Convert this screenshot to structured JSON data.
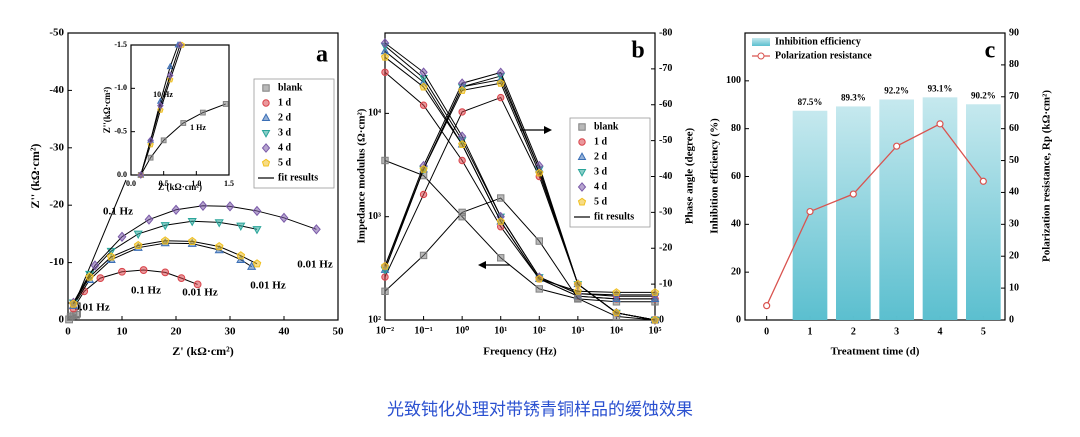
{
  "caption": "光致钝化处理对带锈青铜样品的缓蚀效果",
  "chart_data": [
    {
      "type": "scatter",
      "label": "a",
      "xlabel": "Z' (kΩ·cm²)",
      "ylabel": "Z'' (kΩ·cm²)",
      "xlim": [
        0,
        50
      ],
      "ylim": [
        0,
        -50
      ],
      "xticks": [
        0,
        10,
        20,
        30,
        40,
        50
      ],
      "yticks": [
        0,
        -10,
        -20,
        -30,
        -40,
        -50
      ],
      "fit_label": "fit results",
      "fit_color": "#000000",
      "annotations": [
        "0.1 Hz",
        "0.1 Hz",
        "0.01 Hz",
        "0.01 Hz",
        "0.01 Hz",
        "0.01 Hz"
      ],
      "series": [
        {
          "name": "blank",
          "color": "#808080",
          "marker": "square",
          "x": [
            0.2,
            0.5,
            1,
            1.5
          ],
          "values": [
            -0.1,
            -0.5,
            -0.8,
            -0.9
          ]
        },
        {
          "name": "1 d",
          "color": "#d9434a",
          "marker": "circle",
          "x": [
            1,
            3,
            6,
            10,
            14,
            18,
            21,
            24
          ],
          "values": [
            -2,
            -5,
            -7.3,
            -8.4,
            -8.7,
            -8.3,
            -7.3,
            -6.2
          ]
        },
        {
          "name": "2 d",
          "color": "#3b6fb6",
          "marker": "triangle-up",
          "x": [
            1,
            4,
            8,
            13,
            18,
            23,
            28,
            32,
            34
          ],
          "values": [
            -2.5,
            -7,
            -10.5,
            -12.6,
            -13.4,
            -13.3,
            -12.2,
            -10.5,
            -9.3
          ]
        },
        {
          "name": "3 d",
          "color": "#2aa59a",
          "marker": "triangle-down",
          "x": [
            1,
            4,
            8,
            13,
            18,
            23,
            28,
            32,
            35
          ],
          "values": [
            -3,
            -8,
            -12,
            -15,
            -16.5,
            -17.2,
            -17,
            -16.4,
            -15.8
          ]
        },
        {
          "name": "4 d",
          "color": "#7a5aa8",
          "marker": "diamond",
          "x": [
            1,
            5,
            10,
            15,
            20,
            25,
            30,
            35,
            40,
            46
          ],
          "values": [
            -3,
            -9.5,
            -14.5,
            -17.5,
            -19.2,
            -19.9,
            -19.8,
            -19,
            -17.8,
            -15.8
          ]
        },
        {
          "name": "5 d",
          "color": "#f0c020",
          "marker": "pentagon",
          "x": [
            1,
            4,
            8,
            13,
            18,
            23,
            28,
            32,
            35
          ],
          "values": [
            -2.8,
            -7.5,
            -11,
            -13,
            -13.8,
            -13.7,
            -12.8,
            -11.2,
            -9.8
          ]
        }
      ]
    },
    {
      "type": "scatter",
      "xlabel": "Z'(kΩ·cm²)",
      "ylabel": "Z''(kΩ·cm²)",
      "xlim": [
        0,
        1.5
      ],
      "ylim": [
        0,
        -1.5
      ],
      "xticks": [
        {
          "value": 0,
          "label": "0.0"
        },
        {
          "value": 0.5,
          "label": "0.5"
        },
        {
          "value": 1,
          "label": "1.0"
        },
        {
          "value": 1.5,
          "label": "1.5"
        }
      ],
      "yticks": [
        {
          "value": 0,
          "label": "0.0"
        },
        {
          "value": -0.5,
          "label": "-0.5"
        },
        {
          "value": -1,
          "label": "-1.0"
        },
        {
          "value": -1.5,
          "label": "-1.5"
        }
      ],
      "fit_color": "#000000",
      "annotations": [
        "10 Hz",
        "1 Hz"
      ],
      "series": [
        {
          "color": "#808080",
          "marker": "square",
          "x": [
            0.15,
            0.3,
            0.5,
            0.8,
            1.1,
            1.45
          ],
          "values": [
            0,
            -0.2,
            -0.4,
            -0.6,
            -0.72,
            -0.82
          ]
        },
        {
          "color": "#3b6fb6",
          "marker": "triangle-up",
          "x": [
            0.15,
            0.3,
            0.45,
            0.6,
            0.72
          ],
          "values": [
            0,
            -0.4,
            -0.85,
            -1.25,
            -1.5
          ]
        },
        {
          "color": "#f0c020",
          "marker": "pentagon",
          "x": [
            0.15,
            0.3,
            0.45,
            0.6,
            0.78
          ],
          "values": [
            0,
            -0.35,
            -0.75,
            -1.1,
            -1.5
          ]
        },
        {
          "color": "#7a5aa8",
          "marker": "diamond",
          "x": [
            0.15,
            0.3,
            0.45,
            0.6,
            0.75
          ],
          "values": [
            0,
            -0.4,
            -0.8,
            -1.15,
            -1.5
          ]
        }
      ]
    },
    {
      "type": "line",
      "label": "b",
      "xlabel": "Frequency (Hz)",
      "ylabel": "Impedance modulus (Ω·cm²)",
      "y2label": "Phase angle (degree)",
      "log_x": true,
      "log_y": true,
      "xlim": [
        0.01,
        100000
      ],
      "ylim": [
        100,
        60000
      ],
      "y2lim": [
        0,
        -80
      ],
      "xticks": [
        {
          "value": 0.01,
          "label": "10⁻²"
        },
        {
          "value": 0.1,
          "label": "10⁻¹"
        },
        {
          "value": 1,
          "label": "10⁰"
        },
        {
          "value": 10,
          "label": "10¹"
        },
        {
          "value": 100,
          "label": "10²"
        },
        {
          "value": 1000,
          "label": "10³"
        },
        {
          "value": 10000,
          "label": "10⁴"
        },
        {
          "value": 100000,
          "label": "10⁵"
        }
      ],
      "yticks": [
        {
          "value": 100,
          "label": "10²"
        },
        {
          "value": 1000,
          "label": "10³"
        },
        {
          "value": 10000,
          "label": "10⁴"
        }
      ],
      "y2ticks": [
        0,
        -10,
        -20,
        -30,
        -40,
        -50,
        -60,
        -70,
        -80
      ],
      "fit_label": "fit results",
      "fit_color": "#000000",
      "x": [
        0.01,
        0.1,
        1,
        10,
        100,
        1000,
        10000,
        100000
      ],
      "series": [
        {
          "name": "blank",
          "color": "#808080",
          "marker": "square",
          "values": [
            3500,
            2500,
            1000,
            400,
            200,
            160,
            150,
            150
          ]
        },
        {
          "name": "1 d",
          "color": "#d9434a",
          "marker": "circle",
          "values": [
            25000,
            12000,
            3500,
            800,
            250,
            170,
            160,
            160
          ]
        },
        {
          "name": "2 d",
          "color": "#3b6fb6",
          "marker": "triangle-up",
          "values": [
            40000,
            20000,
            5000,
            900,
            250,
            170,
            160,
            160
          ]
        },
        {
          "name": "3 d",
          "color": "#2aa59a",
          "marker": "triangle-down",
          "values": [
            45000,
            22000,
            5500,
            1000,
            260,
            180,
            170,
            170
          ]
        },
        {
          "name": "4 d",
          "color": "#7a5aa8",
          "marker": "diamond",
          "values": [
            48000,
            25000,
            6000,
            1000,
            260,
            180,
            175,
            175
          ]
        },
        {
          "name": "5 d",
          "color": "#f0c020",
          "marker": "pentagon",
          "values": [
            35000,
            18000,
            5000,
            900,
            250,
            190,
            185,
            185
          ]
        }
      ],
      "phase_series": [
        {
          "axis": "y2",
          "values": [
            -8,
            -18,
            -30,
            -34,
            -22,
            -6,
            -1,
            0
          ]
        },
        {
          "axis": "y2",
          "values": [
            -12,
            -35,
            -58,
            -62,
            -40,
            -10,
            -2,
            0
          ]
        },
        {
          "axis": "y2",
          "values": [
            -14,
            -42,
            -65,
            -67,
            -42,
            -10,
            -2,
            0
          ]
        },
        {
          "axis": "y2",
          "values": [
            -14,
            -42,
            -65,
            -68,
            -42,
            -10,
            -2,
            0
          ]
        },
        {
          "axis": "y2",
          "values": [
            -15,
            -43,
            -66,
            -69,
            -43,
            -10,
            -2,
            0
          ]
        },
        {
          "axis": "y2",
          "values": [
            -15,
            -42,
            -64,
            -66,
            -41,
            -10,
            -2,
            0
          ]
        }
      ]
    },
    {
      "type": "bar",
      "label": "c",
      "xlabel": "Treatment time (d)",
      "ylabel": "Inhibition efficiency (%)",
      "y2label": "Polarization resistance, Rp (kΩ·cm²)",
      "categories": [
        "0",
        "1",
        "2",
        "3",
        "4",
        "5"
      ],
      "ylim": [
        0,
        120
      ],
      "yticks": [
        0,
        20,
        40,
        60,
        80,
        100
      ],
      "y2lim": [
        0,
        90
      ],
      "y2ticks": [
        0,
        10,
        20,
        30,
        40,
        50,
        60,
        70,
        80,
        90
      ],
      "series": [
        {
          "name": "Inhibition efficiency",
          "color": "#5bbfcf",
          "values": [
            null,
            87.5,
            89.3,
            92.2,
            93.1,
            90.2
          ],
          "value_labels": [
            null,
            "87.5%",
            "89.3%",
            "92.2%",
            "93.1%",
            "90.2%"
          ]
        },
        {
          "name": "Polarization resistance",
          "color": "#d9534f",
          "axis": "y2",
          "values": [
            4.5,
            34,
            39.5,
            54.5,
            61.5,
            43.5
          ]
        }
      ]
    }
  ]
}
